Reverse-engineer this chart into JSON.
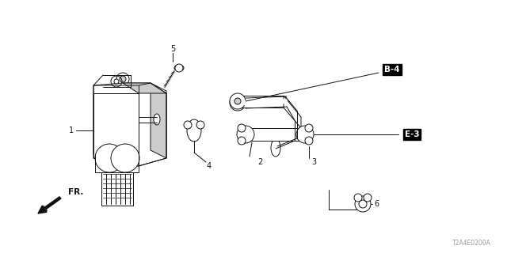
{
  "bg_color": "#ffffff",
  "lc": "#111111",
  "gray": "#888888",
  "lgray": "#cccccc",
  "watermark": "T2A4E0200A",
  "figsize": [
    6.4,
    3.2
  ],
  "dpi": 100
}
